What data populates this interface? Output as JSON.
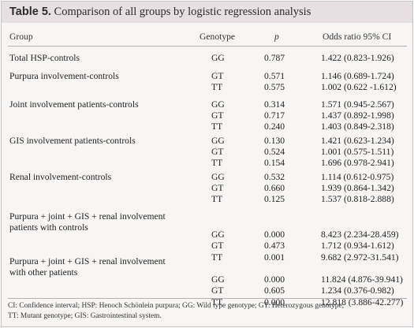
{
  "table": {
    "label": "Table 5.",
    "caption": "Comparison of all groups by logistic regression analysis",
    "headers": {
      "group": "Group",
      "genotype": "Genotype",
      "p": "p",
      "odds_ratio": "Odds ratio 95% CI"
    },
    "groups": [
      {
        "lines": [
          "Total HSP-controls"
        ],
        "rows": [
          {
            "genotype": "GG",
            "p": "0.787",
            "or": "1.422 (0.823-1.926)"
          }
        ]
      },
      {
        "lines": [
          "Purpura involvement-controls"
        ],
        "rows": [
          {
            "genotype": "GT",
            "p": "0.571",
            "or": "1.146 (0.689-1.724)"
          },
          {
            "genotype": "TT",
            "p": "0.575",
            "or": "1.002 (0.622 -1.612)"
          }
        ]
      },
      {
        "lines": [
          "Joint involvement patients-controls"
        ],
        "rows": [
          {
            "genotype": "GG",
            "p": "0.314",
            "or": "1.571 (0.945-2.567)"
          },
          {
            "genotype": "GT",
            "p": "0.717",
            "or": "1.437 (0.892-1.998)"
          },
          {
            "genotype": "TT",
            "p": "0.240",
            "or": "1.403 (0.849-2.318)"
          }
        ]
      },
      {
        "lines": [
          "GIS involvement patients-controls"
        ],
        "rows": [
          {
            "genotype": "GG",
            "p": "0.130",
            "or": "1.421 (0.623-1.234)"
          },
          {
            "genotype": "GT",
            "p": "0.524",
            "or": "1.001 (0.575-1.511)"
          },
          {
            "genotype": "TT",
            "p": "0.154",
            "or": "1.696 (0.978-2.941)"
          }
        ]
      },
      {
        "lines": [
          "Renal involvement-controls"
        ],
        "rows": [
          {
            "genotype": "GG",
            "p": "0.532",
            "or": "1.114 (0.612-0.975)"
          },
          {
            "genotype": "GT",
            "p": "0.660",
            "or": "1.939 (0.864-1.342)"
          },
          {
            "genotype": "TT",
            "p": "0.125",
            "or": "1.537 (0.818-2.888)"
          }
        ]
      },
      {
        "lines": [
          "Purpura + joint + GIS + renal involvement",
          "patients with controls"
        ],
        "rows": [
          {
            "genotype": "GG",
            "p": "0.000",
            "or": "8.423 (2.234-28.459)"
          },
          {
            "genotype": "GT",
            "p": "0.473",
            "or": "1.712 (0.934-1.612)"
          },
          {
            "genotype": "TT",
            "p": "0.001",
            "or": "9.682 (2.972-31.541)"
          }
        ]
      },
      {
        "lines": [
          "Purpura + joint + GIS + renal involvement",
          "with other patients"
        ],
        "rows": [
          {
            "genotype": "GG",
            "p": "0.000",
            "or": "11.824 (4.876-39.941)"
          },
          {
            "genotype": "GT",
            "p": "0.605",
            "or": "1.234 (0.376-0.982)"
          },
          {
            "genotype": "TT",
            "p": "0.000",
            "or": "12.818 (3.886-42.277)"
          }
        ]
      }
    ],
    "footnote": [
      "CI: Confidence interval; HSP: Henoch Schönlein purpura; GG: Wild type genotype; GT: Heterozygous genotype;",
      "TT: Mutant genotype; GIS: Gastrointestinal system."
    ]
  }
}
